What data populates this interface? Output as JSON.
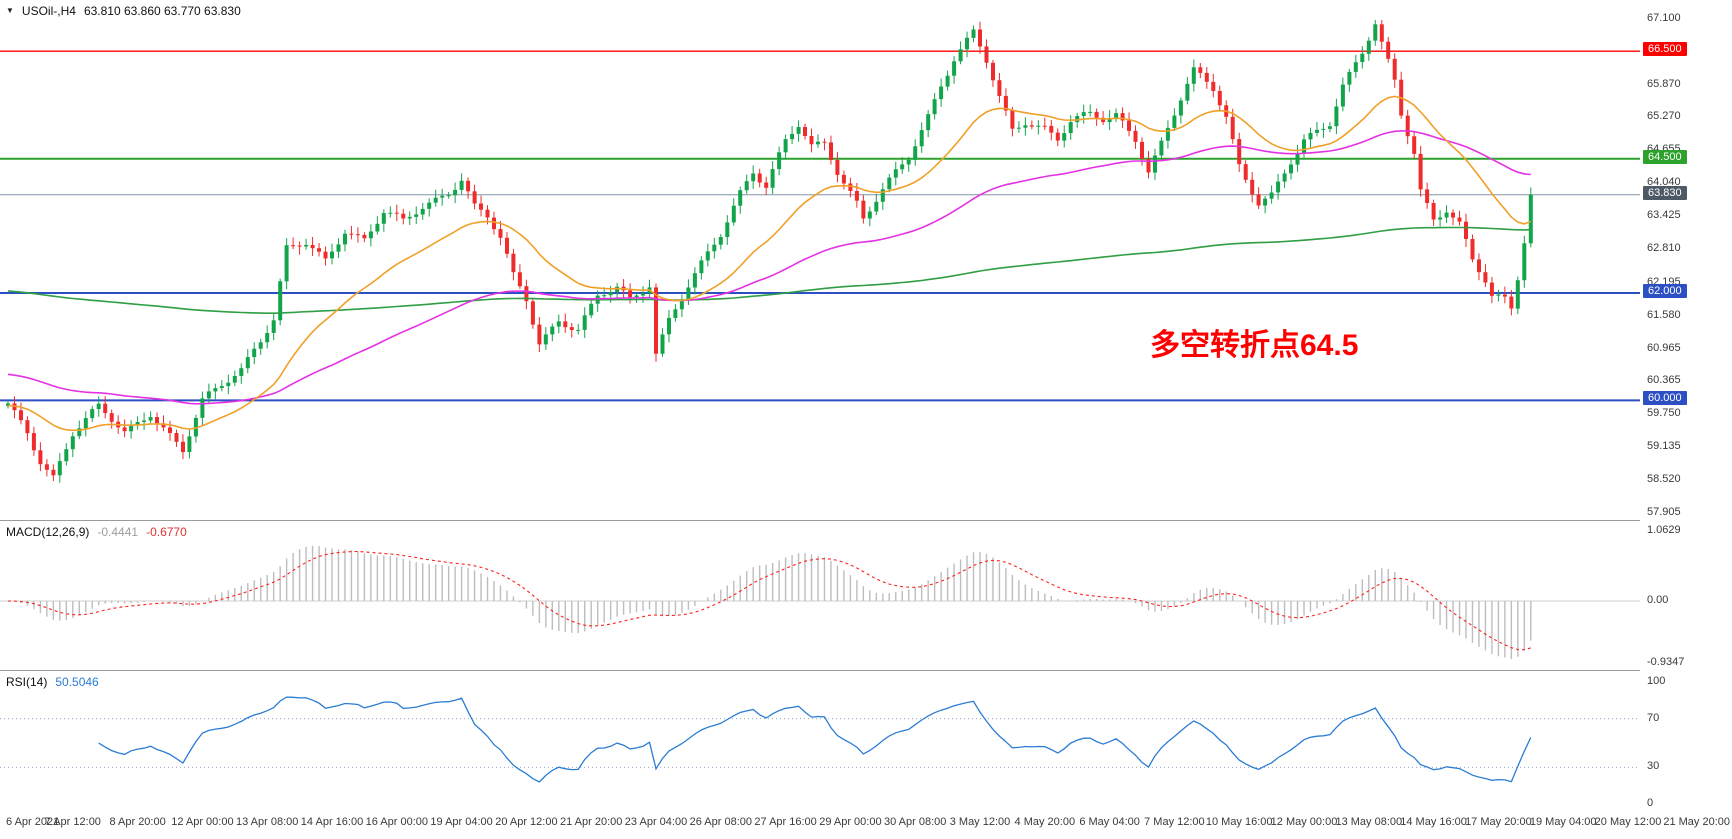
{
  "window": {
    "symbol_period": "USOil-,H4",
    "ohlc_text": "63.810 63.860 63.770 63.830"
  },
  "icons": {
    "chart_marker": "▼"
  },
  "annotation": {
    "text": "多空转折点64.5",
    "color": "#ff0000"
  },
  "price_axis": {
    "ticks": [
      {
        "label": "67.100",
        "value": 67.1
      },
      {
        "label": "65.870",
        "value": 65.87
      },
      {
        "label": "65.270",
        "value": 65.27
      },
      {
        "label": "64.655",
        "value": 64.655
      },
      {
        "label": "64.040",
        "value": 64.04
      },
      {
        "label": "63.425",
        "value": 63.425
      },
      {
        "label": "62.810",
        "value": 62.81
      },
      {
        "label": "62.195",
        "value": 62.195
      },
      {
        "label": "61.580",
        "value": 61.58
      },
      {
        "label": "60.965",
        "value": 60.965
      },
      {
        "label": "60.365",
        "value": 60.365
      },
      {
        "label": "59.750",
        "value": 59.75
      },
      {
        "label": "59.135",
        "value": 59.135
      },
      {
        "label": "58.520",
        "value": 58.52
      },
      {
        "label": "57.905",
        "value": 57.905
      }
    ],
    "badges": [
      {
        "label": "66.500",
        "value": 66.5,
        "bg": "#ff0000"
      },
      {
        "label": "64.500",
        "value": 64.5,
        "bg": "#2ca12c"
      },
      {
        "label": "63.830",
        "value": 63.83,
        "bg": "#4d5a66"
      },
      {
        "label": "62.000",
        "value": 62.0,
        "bg": "#2d4fc4"
      },
      {
        "label": "60.000",
        "value": 60.0,
        "bg": "#2d4fc4"
      }
    ]
  },
  "macd_panel": {
    "label": "MACD(12,26,9)",
    "value_main": "-0.4441",
    "value_signal": "-0.6770",
    "axis_ticks": [
      {
        "label": "1.0629",
        "value": 1.0629
      },
      {
        "label": "0.00",
        "value": 0
      },
      {
        "label": "-0.9347",
        "value": -0.9347
      }
    ]
  },
  "rsi_panel": {
    "label": "RSI(14)",
    "value": "50.5046",
    "axis_ticks": [
      {
        "label": "100",
        "value": 100
      },
      {
        "label": "70",
        "value": 70
      },
      {
        "label": "30",
        "value": 30
      },
      {
        "label": "0",
        "value": 0
      }
    ]
  },
  "time_axis": {
    "labels": [
      "6 Apr 2021",
      "7 Apr 12:00",
      "8 Apr 20:00",
      "12 Apr 00:00",
      "13 Apr 08:00",
      "14 Apr 16:00",
      "16 Apr 00:00",
      "19 Apr 04:00",
      "20 Apr 12:00",
      "21 Apr 20:00",
      "23 Apr 04:00",
      "26 Apr 08:00",
      "27 Apr 16:00",
      "29 Apr 00:00",
      "30 Apr 08:00",
      "3 May 12:00",
      "4 May 20:00",
      "6 May 04:00",
      "7 May 12:00",
      "10 May 16:00",
      "12 May 00:00",
      "13 May 08:00",
      "14 May 16:00",
      "17 May 20:00",
      "19 May 04:00",
      "20 May 12:00",
      "21 May 20:00"
    ]
  },
  "chart_data": {
    "type": "candlestick",
    "symbol": "USOil-",
    "timeframe": "H4",
    "last_quote": {
      "open": 63.81,
      "high": 63.86,
      "low": 63.77,
      "close": 63.83
    },
    "ylim": [
      57.905,
      67.1
    ],
    "candle_count": 236,
    "up_color": "#12a44a",
    "down_color": "#ef2b2b",
    "price_path_anchors": [
      [
        0,
        59.9
      ],
      [
        3,
        59.4
      ],
      [
        5,
        58.9
      ],
      [
        7,
        58.6
      ],
      [
        10,
        59.4
      ],
      [
        14,
        59.85
      ],
      [
        18,
        59.4
      ],
      [
        22,
        59.8
      ],
      [
        24,
        59.5
      ],
      [
        27,
        59.05
      ],
      [
        30,
        59.95
      ],
      [
        33,
        60.3
      ],
      [
        36,
        60.6
      ],
      [
        38,
        61.0
      ],
      [
        41,
        61.5
      ],
      [
        43,
        62.8
      ],
      [
        46,
        62.9
      ],
      [
        49,
        62.6
      ],
      [
        52,
        63.2
      ],
      [
        55,
        63.0
      ],
      [
        58,
        63.5
      ],
      [
        61,
        63.3
      ],
      [
        64,
        63.6
      ],
      [
        68,
        63.9
      ],
      [
        70,
        64.15
      ],
      [
        72,
        63.6
      ],
      [
        74,
        63.4
      ],
      [
        76,
        63.0
      ],
      [
        78,
        62.3
      ],
      [
        80,
        61.9
      ],
      [
        82,
        61.1
      ],
      [
        85,
        61.5
      ],
      [
        88,
        61.3
      ],
      [
        91,
        61.9
      ],
      [
        94,
        62.1
      ],
      [
        96,
        61.9
      ],
      [
        99,
        62.2
      ],
      [
        100,
        60.9
      ],
      [
        102,
        61.5
      ],
      [
        104,
        61.9
      ],
      [
        107,
        62.5
      ],
      [
        110,
        63.1
      ],
      [
        113,
        63.9
      ],
      [
        115,
        64.3
      ],
      [
        117,
        64.0
      ],
      [
        120,
        64.8
      ],
      [
        122,
        65.1
      ],
      [
        124,
        64.7
      ],
      [
        126,
        64.8
      ],
      [
        128,
        64.3
      ],
      [
        131,
        63.7
      ],
      [
        132,
        63.4
      ],
      [
        135,
        63.9
      ],
      [
        137,
        64.2
      ],
      [
        139,
        64.5
      ],
      [
        142,
        65.3
      ],
      [
        144,
        65.9
      ],
      [
        146,
        66.4
      ],
      [
        149,
        66.85
      ],
      [
        151,
        66.3
      ],
      [
        153,
        65.6
      ],
      [
        155,
        65.0
      ],
      [
        157,
        65.2
      ],
      [
        160,
        65.1
      ],
      [
        162,
        64.9
      ],
      [
        164,
        65.2
      ],
      [
        167,
        65.3
      ],
      [
        169,
        65.2
      ],
      [
        171,
        65.3
      ],
      [
        174,
        64.9
      ],
      [
        176,
        64.3
      ],
      [
        178,
        64.8
      ],
      [
        181,
        65.6
      ],
      [
        183,
        66.1
      ],
      [
        186,
        65.8
      ],
      [
        188,
        65.3
      ],
      [
        190,
        64.4
      ],
      [
        193,
        63.7
      ],
      [
        195,
        63.8
      ],
      [
        197,
        64.2
      ],
      [
        200,
        64.8
      ],
      [
        202,
        65.0
      ],
      [
        204,
        65.2
      ],
      [
        206,
        65.9
      ],
      [
        209,
        66.5
      ],
      [
        211,
        67.0
      ],
      [
        212,
        66.6
      ],
      [
        214,
        65.9
      ],
      [
        215,
        65.3
      ],
      [
        217,
        64.6
      ],
      [
        218,
        63.9
      ],
      [
        220,
        63.4
      ],
      [
        222,
        63.6
      ],
      [
        224,
        63.3
      ],
      [
        226,
        62.6
      ],
      [
        228,
        62.2
      ],
      [
        229,
        61.9
      ],
      [
        231,
        61.85
      ],
      [
        232,
        61.7
      ],
      [
        233,
        62.3
      ],
      [
        234,
        63.0
      ],
      [
        235,
        63.83
      ]
    ],
    "horizontal_lines": [
      {
        "price": 66.5,
        "color": "#ff0000",
        "width": 1.4
      },
      {
        "price": 64.5,
        "color": "#2ca12c",
        "width": 2
      },
      {
        "price": 63.83,
        "color": "#8296a8",
        "width": 1
      },
      {
        "price": 62.0,
        "color": "#2d4fc4",
        "width": 2
      },
      {
        "price": 60.0,
        "color": "#2d4fc4",
        "width": 2
      }
    ],
    "moving_averages": [
      {
        "name": "fast-ma",
        "color": "#f0a028",
        "period": 24,
        "seed": 59.9
      },
      {
        "name": "mid-ma",
        "color": "#e431e4",
        "period": 80,
        "seed": 60.5
      },
      {
        "name": "slow-ma",
        "color": "#2f9e44",
        "period": 400,
        "seed": 62.05
      }
    ],
    "macd": {
      "fast": 12,
      "slow": 26,
      "signal": 9,
      "hist_color": "#bdbdbd",
      "signal_color": "#ff2020",
      "ylim": [
        -0.9347,
        1.0629
      ],
      "current_main": -0.4441,
      "current_signal": -0.677
    },
    "rsi": {
      "period": 14,
      "color": "#2b7cd3",
      "ylim": [
        0,
        100
      ],
      "levels": [
        70,
        30
      ],
      "current": 50.5046
    }
  }
}
